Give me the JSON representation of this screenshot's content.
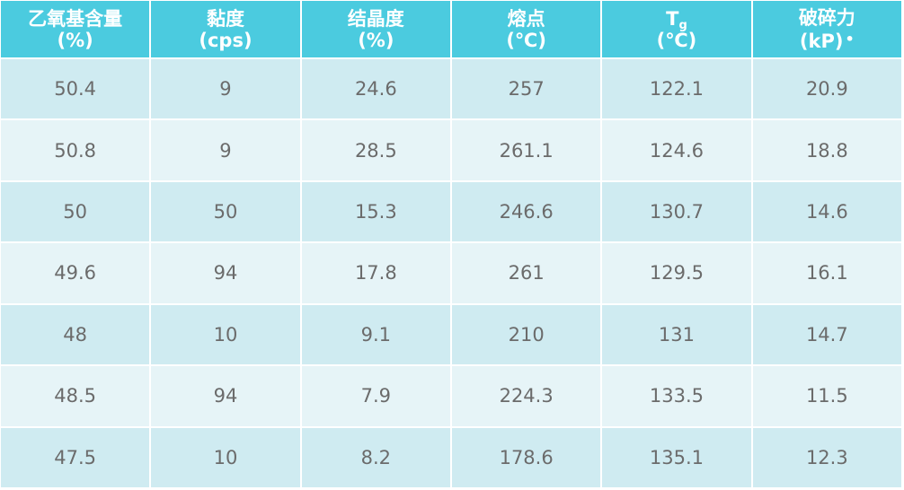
{
  "table": {
    "headers": [
      {
        "line1": "乙氧基含量",
        "line2": "(%)"
      },
      {
        "line1": "黏度",
        "line2": "(cps)"
      },
      {
        "line1": "结晶度",
        "line2": "(%)"
      },
      {
        "line1": "熔点",
        "line2": "(℃)"
      },
      {
        "line1_main": "T",
        "line1_sub": "g",
        "line2": "(℃)"
      },
      {
        "line1": "破碎力",
        "line2": "(kP)",
        "mark": "•"
      }
    ],
    "rows": [
      [
        "50.4",
        "9",
        "24.6",
        "257",
        "122.1",
        "20.9"
      ],
      [
        "50.8",
        "9",
        "28.5",
        "261.1",
        "124.6",
        "18.8"
      ],
      [
        "50",
        "50",
        "15.3",
        "246.6",
        "130.7",
        "14.6"
      ],
      [
        "49.6",
        "94",
        "17.8",
        "261",
        "129.5",
        "16.1"
      ],
      [
        "48",
        "10",
        "9.1",
        "210",
        "131",
        "14.7"
      ],
      [
        "48.5",
        "94",
        "7.9",
        "224.3",
        "133.5",
        "11.5"
      ],
      [
        "47.5",
        "10",
        "8.2",
        "178.6",
        "135.1",
        "12.3"
      ]
    ]
  },
  "colors": {
    "header_bg": "#4bcbdf",
    "row_odd_bg": "#cfebf1",
    "row_even_bg": "#e6f4f7",
    "text": "#6b6b6b"
  }
}
